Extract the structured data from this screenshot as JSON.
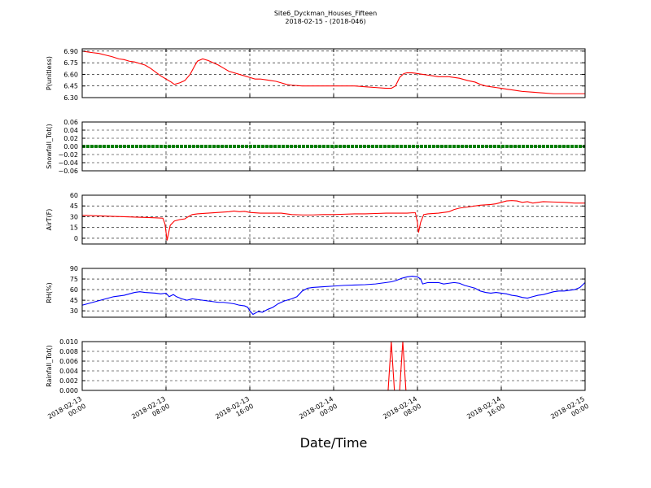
{
  "chart_data": {
    "title": "Site6_Dyckman_Houses_Fifteen",
    "subtitle": "2018-02-15 - (2018-046)",
    "xlabel": "Date/Time",
    "x_ticks": [
      "2018-02-13\n00:00",
      "2018-02-13\n08:00",
      "2018-02-13\n16:00",
      "2018-02-14\n00:00",
      "2018-02-14\n08:00",
      "2018-02-14\n16:00",
      "2018-02-15\n00:00"
    ],
    "x_hours": [
      0,
      8,
      16,
      24,
      32,
      40,
      48
    ],
    "xlim": [
      0,
      48
    ],
    "grid": true,
    "panels": [
      {
        "type": "line",
        "ylabel": "P(unitless)",
        "ylim": [
          6.3,
          6.93
        ],
        "yticks": [
          6.3,
          6.45,
          6.6,
          6.75,
          6.9
        ],
        "ytick_labels": [
          "6.30",
          "6.45",
          "6.60",
          "6.75",
          "6.90"
        ],
        "color": "#ff0000",
        "points": [
          [
            0,
            6.9
          ],
          [
            0.5,
            6.89
          ],
          [
            1,
            6.88
          ],
          [
            1.6,
            6.87
          ],
          [
            2.2,
            6.85
          ],
          [
            2.8,
            6.83
          ],
          [
            3.5,
            6.8
          ],
          [
            4,
            6.79
          ],
          [
            4.5,
            6.77
          ],
          [
            5,
            6.76
          ],
          [
            5.5,
            6.74
          ],
          [
            6,
            6.72
          ],
          [
            6.5,
            6.68
          ],
          [
            7,
            6.63
          ],
          [
            7.5,
            6.58
          ],
          [
            8,
            6.54
          ],
          [
            8.5,
            6.5
          ],
          [
            8.8,
            6.47
          ],
          [
            9.3,
            6.49
          ],
          [
            9.8,
            6.52
          ],
          [
            10.3,
            6.6
          ],
          [
            10.7,
            6.7
          ],
          [
            11,
            6.77
          ],
          [
            11.5,
            6.8
          ],
          [
            12,
            6.78
          ],
          [
            12.5,
            6.75
          ],
          [
            13,
            6.72
          ],
          [
            13.5,
            6.68
          ],
          [
            14,
            6.64
          ],
          [
            14.5,
            6.62
          ],
          [
            15,
            6.6
          ],
          [
            15.5,
            6.58
          ],
          [
            16,
            6.56
          ],
          [
            16.5,
            6.54
          ],
          [
            17,
            6.54
          ],
          [
            17.5,
            6.53
          ],
          [
            18,
            6.52
          ],
          [
            18.5,
            6.51
          ],
          [
            19,
            6.49
          ],
          [
            19.5,
            6.47
          ],
          [
            20,
            6.46
          ],
          [
            21,
            6.45
          ],
          [
            22,
            6.45
          ],
          [
            23,
            6.45
          ],
          [
            24,
            6.45
          ],
          [
            25,
            6.45
          ],
          [
            26,
            6.45
          ],
          [
            27,
            6.44
          ],
          [
            28,
            6.43
          ],
          [
            29,
            6.42
          ],
          [
            29.5,
            6.42
          ],
          [
            29.9,
            6.45
          ],
          [
            30.3,
            6.56
          ],
          [
            30.7,
            6.61
          ],
          [
            31,
            6.62
          ],
          [
            31.5,
            6.62
          ],
          [
            32,
            6.61
          ],
          [
            32.5,
            6.6
          ],
          [
            33,
            6.59
          ],
          [
            33.5,
            6.58
          ],
          [
            34,
            6.57
          ],
          [
            35,
            6.57
          ],
          [
            36,
            6.55
          ],
          [
            36.8,
            6.52
          ],
          [
            37.5,
            6.5
          ],
          [
            38,
            6.47
          ],
          [
            38.5,
            6.45
          ],
          [
            39,
            6.44
          ],
          [
            39.5,
            6.43
          ],
          [
            40,
            6.42
          ],
          [
            40.5,
            6.41
          ],
          [
            41,
            6.4
          ],
          [
            41.5,
            6.39
          ],
          [
            42,
            6.38
          ],
          [
            43,
            6.37
          ],
          [
            44,
            6.36
          ],
          [
            45,
            6.35
          ],
          [
            46,
            6.35
          ],
          [
            47,
            6.35
          ],
          [
            48,
            6.35
          ]
        ]
      },
      {
        "type": "line",
        "ylabel": "Snowfall_Tot()",
        "ylim": [
          -0.06,
          0.06
        ],
        "yticks": [
          -0.06,
          -0.04,
          -0.02,
          0.0,
          0.02,
          0.04,
          0.06
        ],
        "ytick_labels": [
          "−0.06",
          "−0.04",
          "−0.02",
          "0.00",
          "0.02",
          "0.04",
          "0.06"
        ],
        "color": "#007f00",
        "points": [
          [
            0,
            0
          ],
          [
            48,
            0
          ]
        ]
      },
      {
        "type": "line",
        "ylabel": "AirT(F)",
        "ylim": [
          -8,
          60
        ],
        "yticks": [
          0,
          15,
          30,
          45,
          60
        ],
        "ytick_labels": [
          "0",
          "15",
          "30",
          "45",
          "60"
        ],
        "color": "#ff0000",
        "points": [
          [
            0,
            32
          ],
          [
            1,
            31.5
          ],
          [
            2,
            31
          ],
          [
            3,
            30.5
          ],
          [
            4,
            30
          ],
          [
            5,
            29.5
          ],
          [
            6,
            29
          ],
          [
            7,
            28.5
          ],
          [
            7.7,
            28
          ],
          [
            7.9,
            20
          ],
          [
            8.1,
            -3
          ],
          [
            8.4,
            18
          ],
          [
            8.8,
            24
          ],
          [
            9.3,
            26
          ],
          [
            9.8,
            27
          ],
          [
            10,
            29
          ],
          [
            10.5,
            33
          ],
          [
            11,
            34
          ],
          [
            12,
            35
          ],
          [
            13,
            36
          ],
          [
            14,
            37
          ],
          [
            14.5,
            38
          ],
          [
            15,
            37
          ],
          [
            15.5,
            37.5
          ],
          [
            16,
            36
          ],
          [
            17,
            35
          ],
          [
            18,
            35
          ],
          [
            18.5,
            35
          ],
          [
            19,
            35
          ],
          [
            20,
            33
          ],
          [
            21,
            32.5
          ],
          [
            22,
            32.5
          ],
          [
            23,
            33
          ],
          [
            24,
            33
          ],
          [
            25,
            33.5
          ],
          [
            26,
            34
          ],
          [
            27,
            34
          ],
          [
            28,
            34.5
          ],
          [
            29,
            35
          ],
          [
            30,
            35
          ],
          [
            31,
            35
          ],
          [
            31.5,
            35.5
          ],
          [
            31.8,
            35.5
          ],
          [
            32,
            22
          ],
          [
            32.1,
            8
          ],
          [
            32.3,
            22
          ],
          [
            32.6,
            33
          ],
          [
            33,
            34
          ],
          [
            34,
            35
          ],
          [
            35,
            37
          ],
          [
            35.5,
            40
          ],
          [
            36,
            42
          ],
          [
            37,
            44
          ],
          [
            38,
            46
          ],
          [
            39,
            47
          ],
          [
            39.5,
            48
          ],
          [
            40,
            50
          ],
          [
            40.5,
            52
          ],
          [
            41,
            52.5
          ],
          [
            41.5,
            52
          ],
          [
            42,
            50
          ],
          [
            42.5,
            51
          ],
          [
            43,
            49
          ],
          [
            43.5,
            50
          ],
          [
            44,
            51
          ],
          [
            45,
            50.5
          ],
          [
            46,
            50
          ],
          [
            47,
            49
          ],
          [
            48,
            49
          ]
        ]
      },
      {
        "type": "line",
        "ylabel": "RH(%)",
        "ylim": [
          21,
          90
        ],
        "yticks": [
          30,
          45,
          60,
          75,
          90
        ],
        "ytick_labels": [
          "30",
          "45",
          "60",
          "75",
          "90"
        ],
        "color": "#0000ff",
        "points": [
          [
            0,
            38
          ],
          [
            0.5,
            40
          ],
          [
            1,
            42
          ],
          [
            1.5,
            44
          ],
          [
            2,
            46
          ],
          [
            2.5,
            48
          ],
          [
            3,
            50
          ],
          [
            3.5,
            51
          ],
          [
            4,
            52
          ],
          [
            4.5,
            54
          ],
          [
            5,
            56
          ],
          [
            5.5,
            57
          ],
          [
            6,
            56
          ],
          [
            7,
            55
          ],
          [
            7.5,
            54
          ],
          [
            8,
            55
          ],
          [
            8.3,
            50
          ],
          [
            8.7,
            53
          ],
          [
            9,
            50
          ],
          [
            9.5,
            47
          ],
          [
            10,
            45
          ],
          [
            10.5,
            47
          ],
          [
            11,
            46
          ],
          [
            11.5,
            45
          ],
          [
            12,
            44
          ],
          [
            12.5,
            43
          ],
          [
            13,
            42
          ],
          [
            13.5,
            42
          ],
          [
            14,
            41
          ],
          [
            14.5,
            40
          ],
          [
            15,
            38
          ],
          [
            15.5,
            37
          ],
          [
            15.8,
            35
          ],
          [
            16,
            30
          ],
          [
            16.3,
            25
          ],
          [
            16.8,
            29
          ],
          [
            17.2,
            28
          ],
          [
            17.7,
            32
          ],
          [
            18.2,
            35
          ],
          [
            18.7,
            40
          ],
          [
            19.3,
            44
          ],
          [
            20,
            47
          ],
          [
            20.5,
            50
          ],
          [
            21,
            58
          ],
          [
            21.5,
            62
          ],
          [
            22,
            63
          ],
          [
            23,
            64
          ],
          [
            24,
            65
          ],
          [
            25,
            66
          ],
          [
            26,
            66.5
          ],
          [
            27,
            67
          ],
          [
            28,
            68
          ],
          [
            29,
            70
          ],
          [
            29.5,
            71
          ],
          [
            30,
            73
          ],
          [
            30.5,
            76
          ],
          [
            31,
            78
          ],
          [
            31.5,
            79
          ],
          [
            32,
            78
          ],
          [
            32.3,
            75
          ],
          [
            32.5,
            68
          ],
          [
            33,
            70
          ],
          [
            34,
            70
          ],
          [
            34.5,
            68
          ],
          [
            35,
            69
          ],
          [
            35.5,
            70
          ],
          [
            36,
            69
          ],
          [
            36.5,
            66
          ],
          [
            37,
            64
          ],
          [
            37.5,
            62
          ],
          [
            38,
            58
          ],
          [
            38.5,
            56
          ],
          [
            39,
            55
          ],
          [
            39.5,
            56
          ],
          [
            40,
            55
          ],
          [
            40.5,
            54
          ],
          [
            41,
            52
          ],
          [
            41.5,
            51
          ],
          [
            42,
            49
          ],
          [
            42.5,
            48
          ],
          [
            43,
            50
          ],
          [
            43.5,
            52
          ],
          [
            44,
            53
          ],
          [
            44.5,
            55
          ],
          [
            45,
            57
          ],
          [
            45.5,
            58
          ],
          [
            46,
            58
          ],
          [
            46.5,
            59
          ],
          [
            47,
            60
          ],
          [
            47.5,
            63
          ],
          [
            48,
            70
          ]
        ]
      },
      {
        "type": "line",
        "ylabel": "Rainfall_Tot()",
        "ylim": [
          0,
          0.01
        ],
        "yticks": [
          0.0,
          0.002,
          0.004,
          0.006,
          0.008,
          0.01
        ],
        "ytick_labels": [
          "0.000",
          "0.002",
          "0.004",
          "0.006",
          "0.008",
          "0.010"
        ],
        "color": "#ff0000",
        "points": [
          [
            0,
            0
          ],
          [
            29.2,
            0
          ],
          [
            29.5,
            0.01
          ],
          [
            29.8,
            0
          ],
          [
            30.3,
            0
          ],
          [
            30.6,
            0.01
          ],
          [
            30.9,
            0
          ],
          [
            48,
            0
          ]
        ]
      }
    ]
  }
}
